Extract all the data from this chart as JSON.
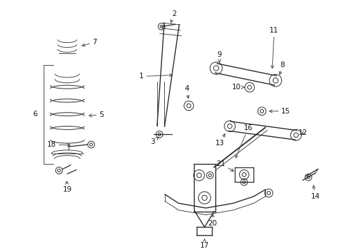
{
  "bg_color": "#ffffff",
  "line_color": "#2a2a2a",
  "label_color": "#111111",
  "arrow_color": "#444444",
  "figsize": [
    4.89,
    3.6
  ],
  "dpi": 100
}
